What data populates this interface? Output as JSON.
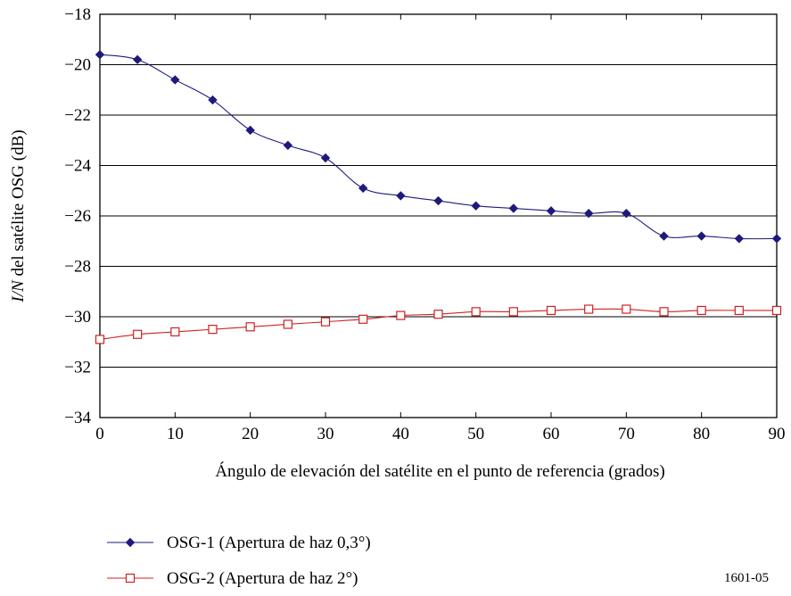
{
  "chart_data": {
    "type": "line",
    "title": "",
    "xlabel": "Ángulo de elevación del satélite en el punto de referencia (grados)",
    "ylabel_italic": "I/N",
    "ylabel_rest": " del satélite OSG (dB)",
    "xlim": [
      0,
      90
    ],
    "ylim": [
      -34,
      -18
    ],
    "xticks": [
      0,
      10,
      20,
      30,
      40,
      50,
      60,
      70,
      80,
      90
    ],
    "yticks": [
      -18,
      -20,
      -22,
      -24,
      -26,
      -28,
      -30,
      -32,
      -34
    ],
    "ytick_labels": [
      "−18",
      "−20",
      "−22",
      "−24",
      "−26",
      "−28",
      "−30",
      "−32",
      "−34"
    ],
    "grid": "horizontal",
    "legend_position": "bottom-left",
    "x": [
      0,
      5,
      10,
      15,
      20,
      25,
      30,
      35,
      40,
      45,
      50,
      55,
      60,
      65,
      70,
      75,
      80,
      85,
      90
    ],
    "series": [
      {
        "name": "OSG-1 (Apertura de haz 0,3°)",
        "color": "#1f1a7a",
        "marker": "diamond",
        "values": [
          -19.6,
          -19.8,
          -20.6,
          -21.4,
          -22.6,
          -23.2,
          -23.7,
          -24.9,
          -25.2,
          -25.4,
          -25.6,
          -25.7,
          -25.8,
          -25.9,
          -25.9,
          -26.8,
          -26.8,
          -26.9,
          -26.9
        ]
      },
      {
        "name": "OSG-2 (Apertura de haz 2°)",
        "color": "#cc2222",
        "marker": "square-open",
        "values": [
          -30.9,
          -30.7,
          -30.6,
          -30.5,
          -30.4,
          -30.3,
          -30.2,
          -30.1,
          -29.95,
          -29.9,
          -29.8,
          -29.8,
          -29.75,
          -29.7,
          -29.7,
          -29.8,
          -29.75,
          -29.75,
          -29.75
        ]
      }
    ]
  },
  "figure_id": "1601-05"
}
